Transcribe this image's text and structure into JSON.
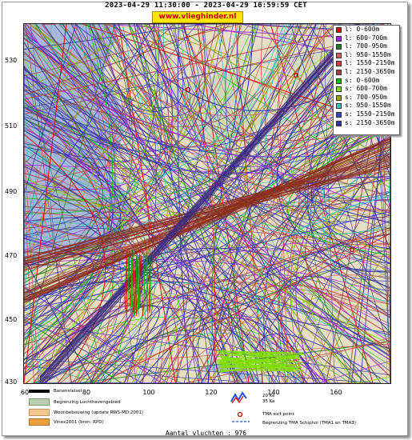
{
  "header": {
    "title": "2023-04-29 11:30:00 - 2023-04-29 16:59:59 CET",
    "site": "www.vlieghinder.nl"
  },
  "axes": {
    "y_ticks": [
      "530",
      "510",
      "490",
      "470",
      "450",
      "430"
    ],
    "x_ticks": [
      "60",
      "80",
      "100",
      "120",
      "140",
      "160"
    ]
  },
  "legend": [
    {
      "label": "l: 0-600m",
      "color": "#e00000"
    },
    {
      "label": "l: 600-700m",
      "color": "#a020f0"
    },
    {
      "label": "l: 700-950m",
      "color": "#208020"
    },
    {
      "label": "l: 950-1550m",
      "color": "#c86060"
    },
    {
      "label": "l: 1550-2150m",
      "color": "#d04040"
    },
    {
      "label": "l: 2150-3650m",
      "color": "#a04040"
    },
    {
      "label": "s: 0-600m",
      "color": "#00c000"
    },
    {
      "label": "s: 600-700m",
      "color": "#80e000"
    },
    {
      "label": "s: 700-950m",
      "color": "#a0a000"
    },
    {
      "label": "s: 950-1550m",
      "color": "#40c0c0"
    },
    {
      "label": "s: 1550-2150m",
      "color": "#4040c0"
    },
    {
      "label": "s: 2150-3650m",
      "color": "#3030a0"
    }
  ],
  "map_key": {
    "runway": "Banenstelsel",
    "airport_boundary": "Begrenzing Luchthavengebied",
    "housing": "Woonbebouwing (update RWS-MD 2001)",
    "vinex": "Vinex2001 (bron: RPD)",
    "ke": "20 Ke\n35 Ke",
    "tma_exit": "TMA exit point",
    "tma_boundary": "Begrenzing TMA Schiphol  (TMA1 en TMA3)"
  },
  "footer": {
    "flights": "Aantal vluchten : 976"
  }
}
